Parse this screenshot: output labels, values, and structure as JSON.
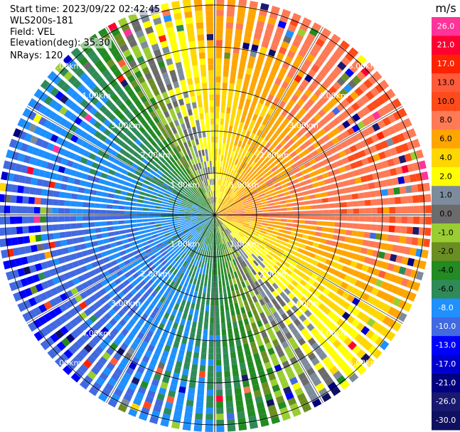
{
  "header": {
    "start_time": "Start time: 2023/09/22 02:42:45",
    "instrument": "WLS200s-181",
    "field": "Field: VEL",
    "elevation": "Elevation(deg): 35.30",
    "nrays": "NRays: 120"
  },
  "colorbar": {
    "unit": "m/s",
    "levels": [
      {
        "label": "26.0",
        "color": "#ff3399"
      },
      {
        "label": "21.0",
        "color": "#ff0033"
      },
      {
        "label": "17.0",
        "color": "#ff2200"
      },
      {
        "label": "13.0",
        "color": "#ff5a3a"
      },
      {
        "label": "10.0",
        "color": "#ff4a1a"
      },
      {
        "label": "8.0",
        "color": "#ff7a55"
      },
      {
        "label": "6.0",
        "color": "#ffa500"
      },
      {
        "label": "4.0",
        "color": "#ffd700"
      },
      {
        "label": "2.0",
        "color": "#ffff00"
      },
      {
        "label": "1.0",
        "color": "#7c8c9c"
      },
      {
        "label": "0.0",
        "color": "#6b6b6b"
      },
      {
        "label": "-1.0",
        "color": "#9acd32"
      },
      {
        "label": "-2.0",
        "color": "#6b8e23"
      },
      {
        "label": "-4.0",
        "color": "#228b22"
      },
      {
        "label": "-6.0",
        "color": "#2e8b57"
      },
      {
        "label": "-8.0",
        "color": "#1e90ff"
      },
      {
        "label": "-10.0",
        "color": "#4169e1"
      },
      {
        "label": "-13.0",
        "color": "#0000ff"
      },
      {
        "label": "-17.0",
        "color": "#0000cd"
      },
      {
        "label": "-21.0",
        "color": "#000080"
      },
      {
        "label": "-26.0",
        "color": "#191970"
      },
      {
        "label": "-30.0",
        "color": "#101060"
      }
    ]
  },
  "chart_data": {
    "type": "heatmap",
    "field": "VEL",
    "projection": "polar (plan position indicator)",
    "unit": "m/s",
    "nrays": 120,
    "ring_labels": [
      "1.00km",
      "2.00km",
      "3.00km",
      "4.00km",
      "5.00km"
    ],
    "range_rings_km": [
      1,
      2,
      3,
      4,
      5
    ],
    "pattern": {
      "approx_sector_velocity_ms": [
        {
          "sector": "north",
          "near": 2.0,
          "far": 8.0
        },
        {
          "sector": "north-east",
          "near": 6.0,
          "far": 10.0
        },
        {
          "sector": "east",
          "near": 8.0,
          "far": 10.0
        },
        {
          "sector": "south-east",
          "near": 2.0,
          "far": 4.0
        },
        {
          "sector": "south",
          "near": -4.0,
          "far": -6.0
        },
        {
          "sector": "south-west",
          "near": -6.0,
          "far": -10.0
        },
        {
          "sector": "west",
          "near": -6.0,
          "far": -10.0
        },
        {
          "sector": "north-west",
          "near": -4.0,
          "far": -6.0
        }
      ]
    }
  }
}
